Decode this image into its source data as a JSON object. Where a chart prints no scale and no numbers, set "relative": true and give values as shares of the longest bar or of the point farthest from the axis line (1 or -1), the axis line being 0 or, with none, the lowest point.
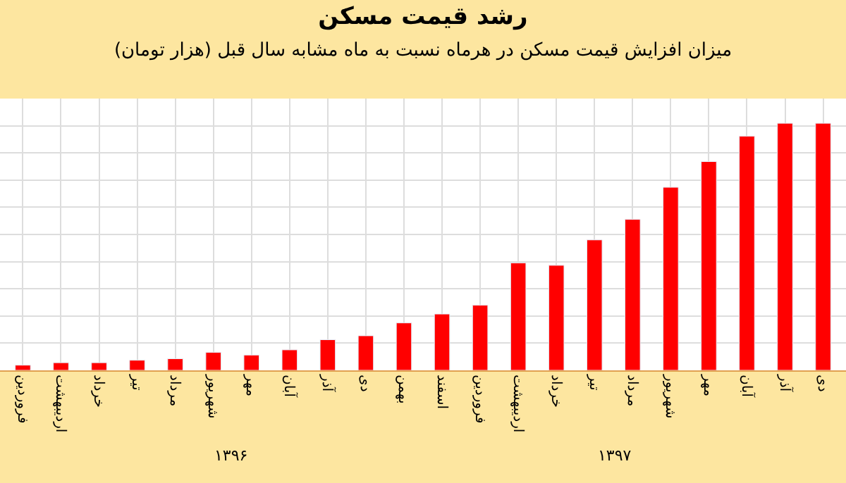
{
  "chart_data": {
    "type": "bar",
    "title": "رشد قیمت مسکن",
    "subtitle": "میزان افزایش قیمت مسکن در هرماه نسبت به ماه مشابه سال قبل (هزار تومان)",
    "categories": [
      "فروردین",
      "اردیبهشت",
      "خرداد",
      "تیر",
      "مرداد",
      "شهریور",
      "مهر",
      "آبان",
      "آذر",
      "دی",
      "بهمن",
      "اسفند",
      "فروردین",
      "اردیبهشت",
      "خرداد",
      "تیر",
      "مرداد",
      "شهریور",
      "مهر",
      "آبان",
      "آذر",
      "دی"
    ],
    "values": [
      0.021,
      0.031,
      0.031,
      0.041,
      0.047,
      0.073,
      0.062,
      0.083,
      0.124,
      0.14,
      0.192,
      0.228,
      0.264,
      0.435,
      0.425,
      0.528,
      0.611,
      0.741,
      0.845,
      0.948,
      1,
      1
    ],
    "color": "#ff0000",
    "relative": true,
    "grid": true,
    "annotations": [
      "۱۳۹۶",
      "۱۳۹۷"
    ]
  }
}
